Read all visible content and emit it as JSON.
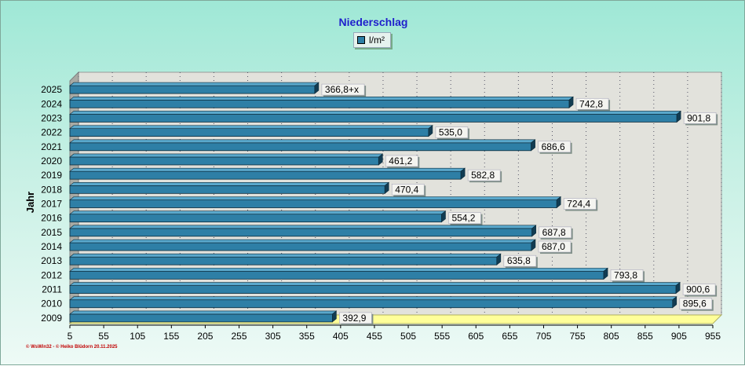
{
  "chart_data": {
    "type": "bar",
    "orientation": "horizontal",
    "title": "Niederschlag",
    "legend": [
      "l/m²"
    ],
    "ylabel": "Jahr",
    "xlabel": "",
    "xlim": [
      5,
      955
    ],
    "xticks": [
      5,
      55,
      105,
      155,
      205,
      255,
      305,
      355,
      405,
      455,
      505,
      555,
      605,
      655,
      705,
      755,
      805,
      855,
      905,
      955
    ],
    "categories": [
      "2025",
      "2024",
      "2023",
      "2022",
      "2021",
      "2020",
      "2019",
      "2018",
      "2017",
      "2016",
      "2015",
      "2014",
      "2013",
      "2012",
      "2011",
      "2010",
      "2009"
    ],
    "values": [
      366.8,
      742.8,
      901.8,
      535.0,
      686.6,
      461.2,
      582.8,
      470.4,
      724.4,
      554.2,
      687.8,
      687.0,
      635.8,
      793.8,
      900.6,
      895.6,
      392.9
    ],
    "labels": [
      "366,8+x",
      "742,8",
      "901,8",
      "535,0",
      "686,6",
      "461,2",
      "582,8",
      "470,4",
      "724,4",
      "554,2",
      "687,8",
      "687,0",
      "635,8",
      "793,8",
      "900,6",
      "895,6",
      "392,9"
    ],
    "colors": {
      "bar": "#2e7fa6",
      "bar_top": "#5aa8cc",
      "bar_side": "#123c52",
      "title": "#1f1fcc",
      "credit": "#c00000"
    }
  },
  "footer": {
    "credit": "© WsWin32 - © Heiko Blüdorn 20.11.2025"
  }
}
